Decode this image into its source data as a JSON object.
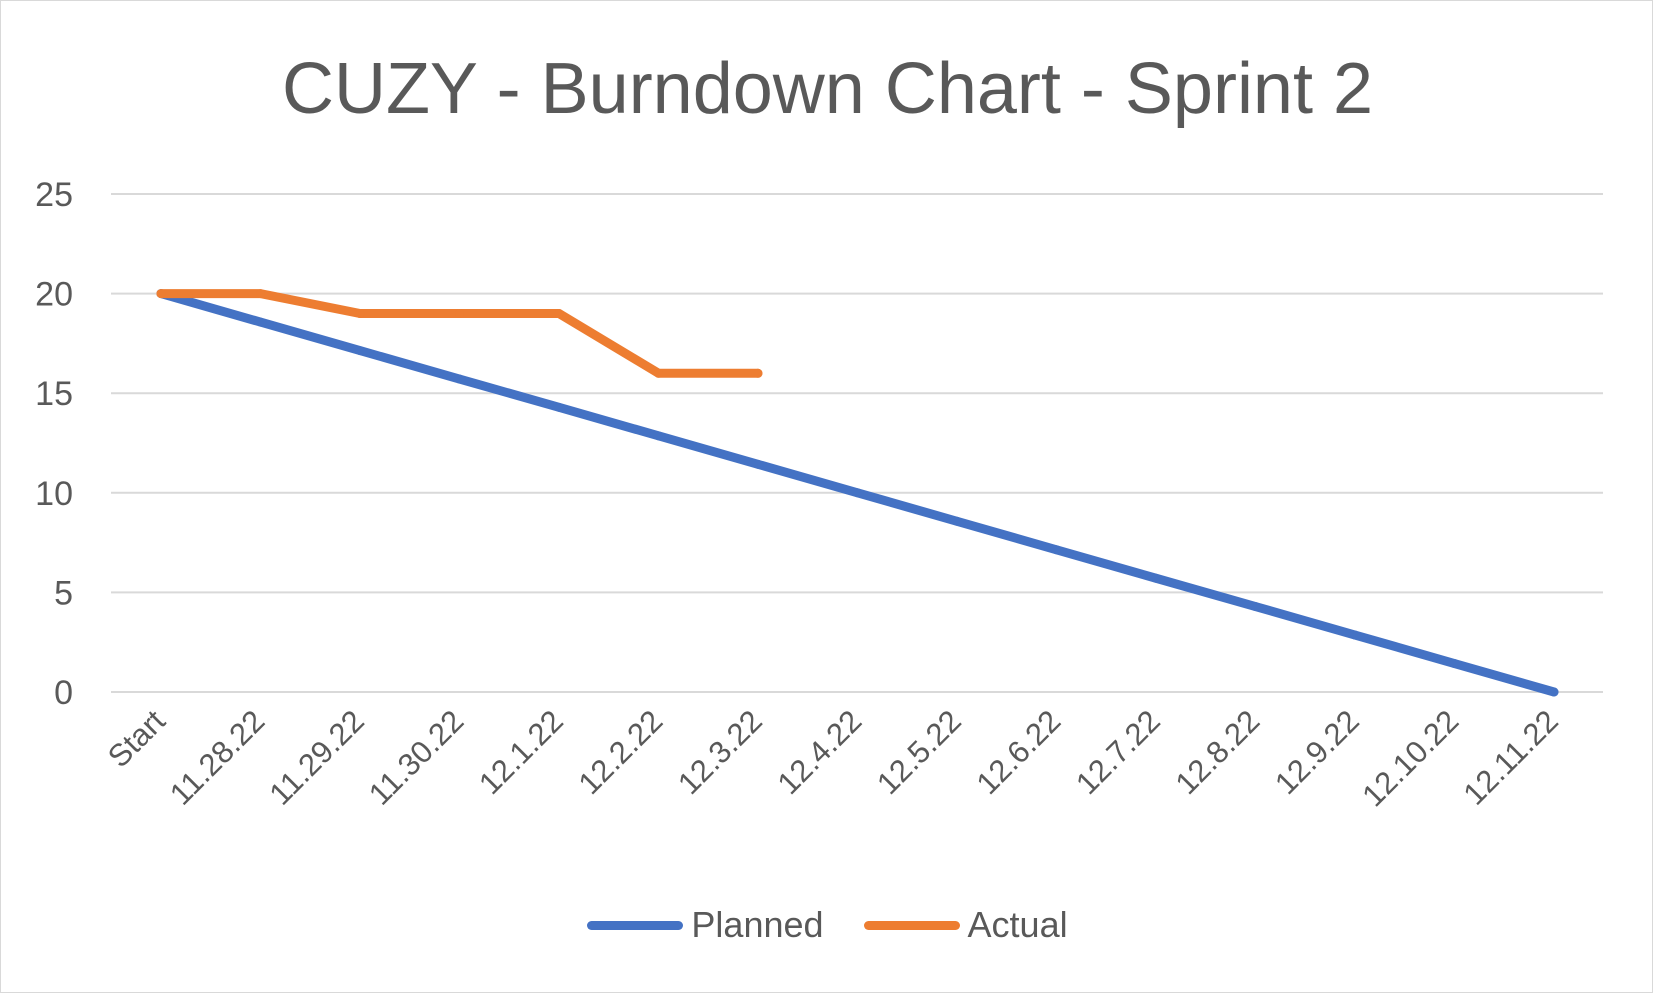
{
  "chart_data": {
    "type": "line",
    "title": "CUZY - Burndown Chart - Sprint 2",
    "xlabel": "",
    "ylabel": "",
    "categories": [
      "Start",
      "11.28.22",
      "11.29.22",
      "11.30.22",
      "12.1.22",
      "12.2.22",
      "12.3.22",
      "12.4.22",
      "12.5.22",
      "12.6.22",
      "12.7.22",
      "12.8.22",
      "12.9.22",
      "12.10.22",
      "12.11.22"
    ],
    "yticks": [
      "0",
      "5",
      "10",
      "15",
      "20",
      "25"
    ],
    "ylim": [
      0,
      25
    ],
    "grid": true,
    "legend_position": "bottom",
    "series": [
      {
        "name": "Planned",
        "color": "#4472c4",
        "values": [
          20,
          18.57,
          17.14,
          15.71,
          14.29,
          12.86,
          11.43,
          10,
          8.57,
          7.14,
          5.71,
          4.29,
          2.86,
          1.43,
          0
        ]
      },
      {
        "name": "Actual",
        "color": "#ed7d31",
        "values": [
          20,
          20,
          19,
          19,
          19,
          16,
          16,
          null,
          null,
          null,
          null,
          null,
          null,
          null,
          null
        ]
      }
    ]
  }
}
